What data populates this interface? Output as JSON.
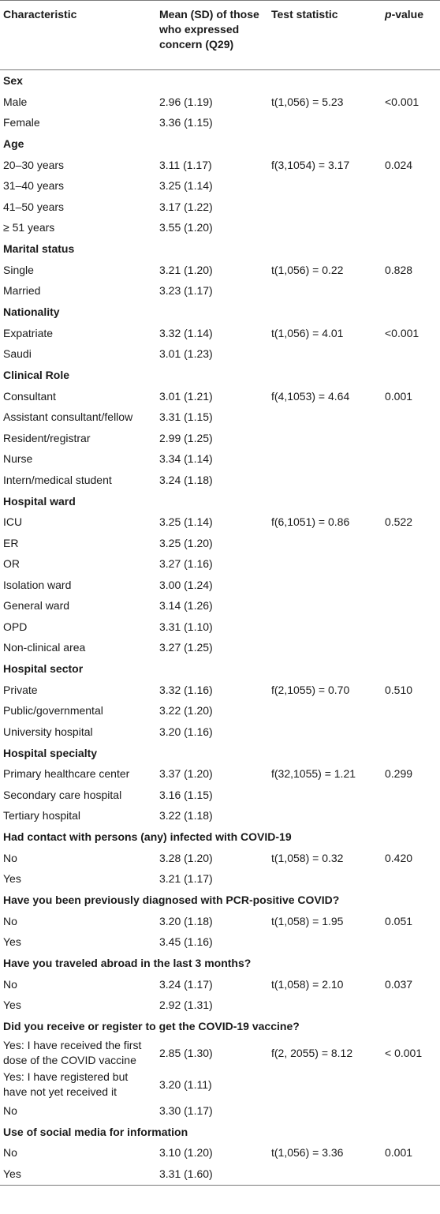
{
  "table": {
    "headers": {
      "characteristic": "Characteristic",
      "mean": "Mean (SD) of those who expressed concern (Q29)",
      "test": "Test statistic",
      "p_prefix": "p",
      "p_suffix": "-value"
    },
    "groups": [
      {
        "title": "Sex",
        "rows": [
          {
            "label": "Male",
            "mean": "2.96 (1.19)",
            "test": "t(1,056) = 5.23",
            "p": "<0.001"
          },
          {
            "label": "Female",
            "mean": "3.36 (1.15)",
            "test": "",
            "p": ""
          }
        ]
      },
      {
        "title": "Age",
        "rows": [
          {
            "label": "20–30 years",
            "mean": "3.11 (1.17)",
            "test": "f(3,1054) = 3.17",
            "p": "0.024"
          },
          {
            "label": "31–40 years",
            "mean": "3.25 (1.14)",
            "test": "",
            "p": ""
          },
          {
            "label": "41–50 years",
            "mean": "3.17 (1.22)",
            "test": "",
            "p": ""
          },
          {
            "label": "≥ 51 years",
            "mean": "3.55 (1.20)",
            "test": "",
            "p": ""
          }
        ]
      },
      {
        "title": "Marital status",
        "rows": [
          {
            "label": "Single",
            "mean": "3.21 (1.20)",
            "test": "t(1,056) = 0.22",
            "p": "0.828"
          },
          {
            "label": "Married",
            "mean": "3.23 (1.17)",
            "test": "",
            "p": ""
          }
        ]
      },
      {
        "title": "Nationality",
        "rows": [
          {
            "label": "Expatriate",
            "mean": "3.32 (1.14)",
            "test": "t(1,056) = 4.01",
            "p": "<0.001"
          },
          {
            "label": "Saudi",
            "mean": "3.01 (1.23)",
            "test": "",
            "p": ""
          }
        ]
      },
      {
        "title": "Clinical Role",
        "rows": [
          {
            "label": "Consultant",
            "mean": "3.01 (1.21)",
            "test": "f(4,1053) = 4.64",
            "p": "0.001"
          },
          {
            "label": "Assistant consultant/fellow",
            "mean": "3.31 (1.15)",
            "test": "",
            "p": ""
          },
          {
            "label": "Resident/registrar",
            "mean": "2.99 (1.25)",
            "test": "",
            "p": ""
          },
          {
            "label": "Nurse",
            "mean": "3.34 (1.14)",
            "test": "",
            "p": ""
          },
          {
            "label": "Intern/medical student",
            "mean": "3.24 (1.18)",
            "test": "",
            "p": ""
          }
        ]
      },
      {
        "title": "Hospital ward",
        "rows": [
          {
            "label": "ICU",
            "mean": "3.25 (1.14)",
            "test": "f(6,1051) = 0.86",
            "p": "0.522"
          },
          {
            "label": "ER",
            "mean": "3.25 (1.20)",
            "test": "",
            "p": ""
          },
          {
            "label": "OR",
            "mean": "3.27 (1.16)",
            "test": "",
            "p": ""
          },
          {
            "label": "Isolation ward",
            "mean": "3.00 (1.24)",
            "test": "",
            "p": ""
          },
          {
            "label": "General ward",
            "mean": "3.14 (1.26)",
            "test": "",
            "p": ""
          },
          {
            "label": "OPD",
            "mean": "3.31 (1.10)",
            "test": "",
            "p": ""
          },
          {
            "label": "Non-clinical area",
            "mean": "3.27 (1.25)",
            "test": "",
            "p": ""
          }
        ]
      },
      {
        "title": "Hospital sector",
        "rows": [
          {
            "label": "Private",
            "mean": "3.32 (1.16)",
            "test": "f(2,1055) = 0.70",
            "p": "0.510"
          },
          {
            "label": "Public/governmental",
            "mean": "3.22 (1.20)",
            "test": "",
            "p": ""
          },
          {
            "label": "University hospital",
            "mean": "3.20 (1.16)",
            "test": "",
            "p": ""
          }
        ]
      },
      {
        "title": "Hospital specialty",
        "rows": [
          {
            "label": "Primary healthcare center",
            "mean": "3.37 (1.20)",
            "test": "f(32,1055) = 1.21",
            "p": "0.299"
          },
          {
            "label": "Secondary care hospital",
            "mean": "3.16 (1.15)",
            "test": "",
            "p": ""
          },
          {
            "label": "Tertiary hospital",
            "mean": "3.22 (1.18)",
            "test": "",
            "p": ""
          }
        ]
      },
      {
        "title": "Had contact with persons (any) infected with COVID-19",
        "rows": [
          {
            "label": "No",
            "mean": "3.28 (1.20)",
            "test": "t(1,058) = 0.32",
            "p": "0.420"
          },
          {
            "label": "Yes",
            "mean": "3.21 (1.17)",
            "test": "",
            "p": ""
          }
        ]
      },
      {
        "title": "Have you been previously diagnosed with PCR-positive COVID?",
        "rows": [
          {
            "label": "No",
            "mean": "3.20 (1.18)",
            "test": "t(1,058) = 1.95",
            "p": "0.051"
          },
          {
            "label": "Yes",
            "mean": "3.45 (1.16)",
            "test": "",
            "p": ""
          }
        ]
      },
      {
        "title": "Have you traveled abroad in the last 3 months?",
        "rows": [
          {
            "label": "No",
            "mean": "3.24 (1.17)",
            "test": "t(1,058) = 2.10",
            "p": "0.037"
          },
          {
            "label": "Yes",
            "mean": "2.92 (1.31)",
            "test": "",
            "p": ""
          }
        ]
      },
      {
        "title": "Did you receive or register to get the COVID-19 vaccine?",
        "rows": [
          {
            "label": "Yes: I have received the first dose of the COVID vaccine",
            "mean": "2.85 (1.30)",
            "test": "f(2, 2055) = 8.12",
            "p": "< 0.001",
            "two": true
          },
          {
            "label": "Yes: I have registered but have not yet received it",
            "mean": "3.20 (1.11)",
            "test": "",
            "p": "",
            "two": true
          },
          {
            "label": "No",
            "mean": "3.30 (1.17)",
            "test": "",
            "p": ""
          }
        ]
      },
      {
        "title": "Use of social media for information",
        "rows": [
          {
            "label": "No",
            "mean": "3.10 (1.20)",
            "test": "t(1,056) = 3.36",
            "p": "0.001"
          },
          {
            "label": "Yes",
            "mean": "3.31 (1.60)",
            "test": "",
            "p": ""
          }
        ]
      }
    ]
  }
}
